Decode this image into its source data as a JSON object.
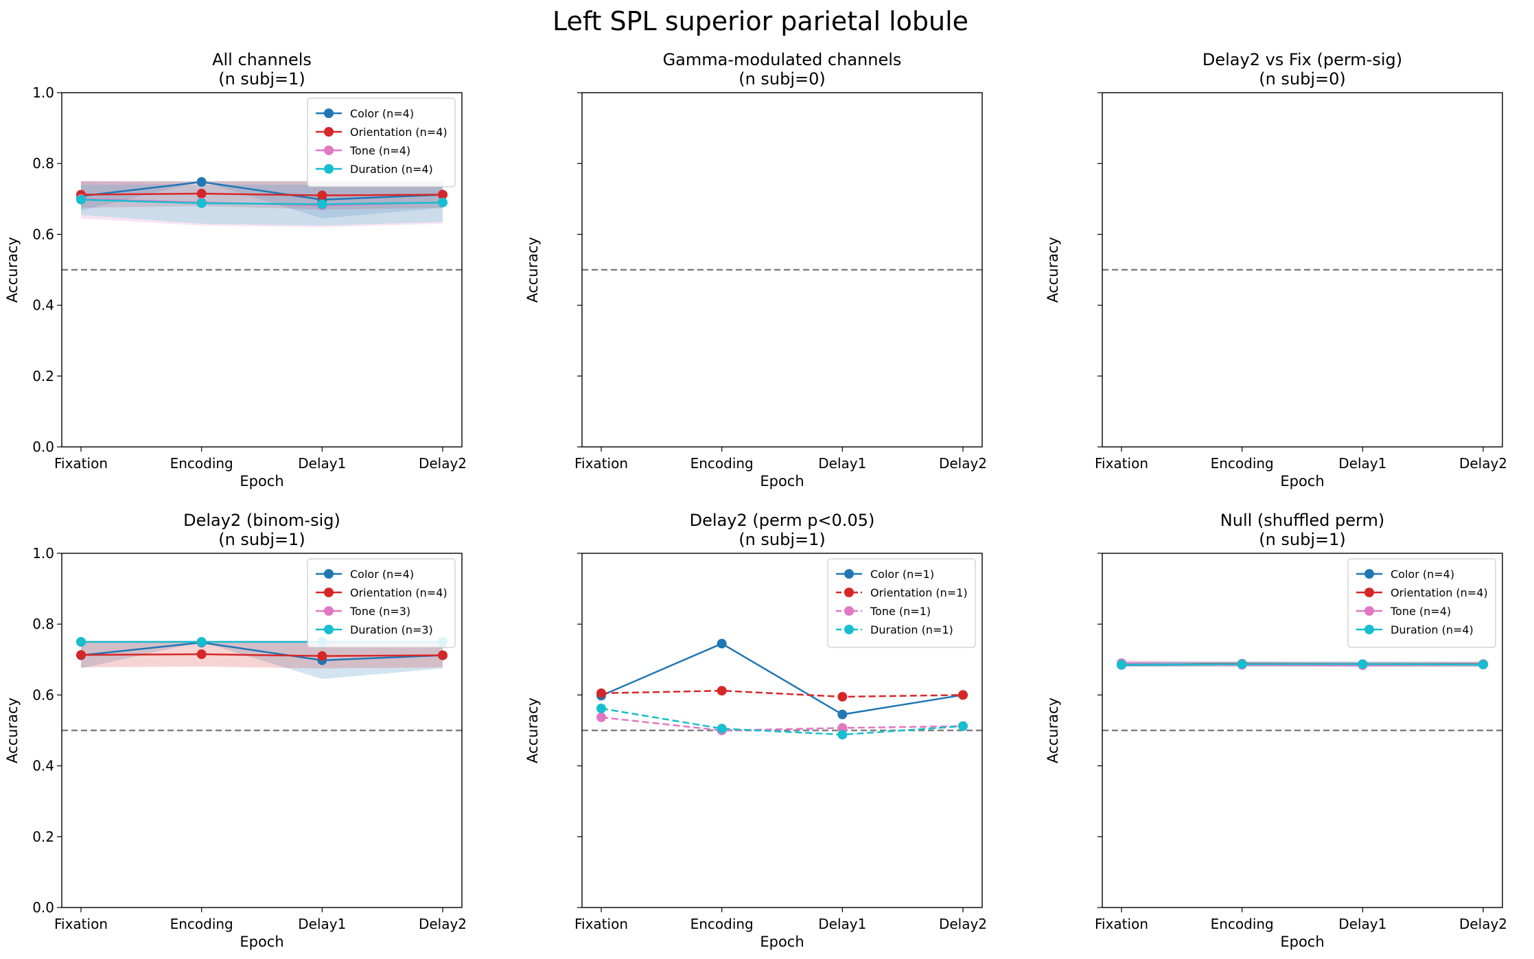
{
  "figure": {
    "suptitle": "Left SPL superior parietal lobule"
  },
  "colors": {
    "Color": "#1f77b4",
    "Orientation": "#d62728",
    "Tone": "#e377c2",
    "Duration": "#17becf",
    "chance_line": "#808080"
  },
  "chart_data": [
    {
      "type": "line",
      "title": "All channels",
      "subtitle": "(n subj=1)",
      "xlabel": "Epoch",
      "ylabel": "Accuracy",
      "categories": [
        "Fixation",
        "Encoding",
        "Delay1",
        "Delay2"
      ],
      "ylim": [
        0,
        1
      ],
      "yticks": [
        "0.0",
        "0.2",
        "0.4",
        "0.6",
        "0.8",
        "1.0"
      ],
      "show_ytick_labels": true,
      "chance_level": 0.5,
      "legend_position": "top-right",
      "series": [
        {
          "name": "Color (n=4)",
          "key": "Color",
          "dashed": false,
          "values": [
            0.708,
            0.748,
            0.698,
            0.712
          ],
          "band": [
            [
              0.667,
              0.75
            ],
            [
              0.75,
              0.75
            ],
            [
              0.645,
              0.75
            ],
            [
              0.675,
              0.75
            ]
          ]
        },
        {
          "name": "Orientation (n=4)",
          "key": "Orientation",
          "dashed": false,
          "values": [
            0.712,
            0.715,
            0.71,
            0.712
          ],
          "band": [
            [
              0.675,
              0.75
            ],
            [
              0.68,
              0.75
            ],
            [
              0.67,
              0.75
            ],
            [
              0.675,
              0.75
            ]
          ]
        },
        {
          "name": "Tone (n=4)",
          "key": "Tone",
          "dashed": false,
          "values": [
            0.7,
            0.69,
            0.682,
            0.69
          ],
          "band": [
            [
              0.645,
              0.75
            ],
            [
              0.625,
              0.74
            ],
            [
              0.62,
              0.74
            ],
            [
              0.63,
              0.74
            ]
          ]
        },
        {
          "name": "Duration (n=4)",
          "key": "Duration",
          "dashed": false,
          "values": [
            0.698,
            0.688,
            0.685,
            0.69
          ],
          "band": [
            [
              0.655,
              0.74
            ],
            [
              0.63,
              0.74
            ],
            [
              0.625,
              0.74
            ],
            [
              0.635,
              0.74
            ]
          ]
        }
      ]
    },
    {
      "type": "line",
      "title": "Gamma-modulated channels",
      "subtitle": "(n subj=0)",
      "xlabel": "Epoch",
      "ylabel": "Accuracy",
      "categories": [
        "Fixation",
        "Encoding",
        "Delay1",
        "Delay2"
      ],
      "ylim": [
        0,
        1
      ],
      "yticks": [
        "0.0",
        "0.2",
        "0.4",
        "0.6",
        "0.8",
        "1.0"
      ],
      "show_ytick_labels": false,
      "chance_level": 0.5,
      "series": []
    },
    {
      "type": "line",
      "title": "Delay2 vs Fix (perm-sig)",
      "subtitle": "(n subj=0)",
      "xlabel": "Epoch",
      "ylabel": "Accuracy",
      "categories": [
        "Fixation",
        "Encoding",
        "Delay1",
        "Delay2"
      ],
      "ylim": [
        0,
        1
      ],
      "yticks": [
        "0.0",
        "0.2",
        "0.4",
        "0.6",
        "0.8",
        "1.0"
      ],
      "show_ytick_labels": false,
      "chance_level": 0.5,
      "series": []
    },
    {
      "type": "line",
      "title": "Delay2 (binom-sig)",
      "subtitle": "(n subj=1)",
      "xlabel": "Epoch",
      "ylabel": "Accuracy",
      "categories": [
        "Fixation",
        "Encoding",
        "Delay1",
        "Delay2"
      ],
      "ylim": [
        0,
        1
      ],
      "yticks": [
        "0.0",
        "0.2",
        "0.4",
        "0.6",
        "0.8",
        "1.0"
      ],
      "show_ytick_labels": true,
      "chance_level": 0.5,
      "legend_position": "top-right",
      "series": [
        {
          "name": "Color (n=4)",
          "key": "Color",
          "dashed": false,
          "values": [
            0.712,
            0.748,
            0.698,
            0.712
          ],
          "band": [
            [
              0.675,
              0.75
            ],
            [
              0.75,
              0.75
            ],
            [
              0.645,
              0.75
            ],
            [
              0.675,
              0.75
            ]
          ]
        },
        {
          "name": "Orientation (n=4)",
          "key": "Orientation",
          "dashed": false,
          "values": [
            0.713,
            0.715,
            0.71,
            0.712
          ],
          "band": [
            [
              0.678,
              0.75
            ],
            [
              0.68,
              0.75
            ],
            [
              0.675,
              0.75
            ],
            [
              0.678,
              0.75
            ]
          ]
        },
        {
          "name": "Tone (n=3)",
          "key": "Tone",
          "dashed": false,
          "values": [
            0.75,
            0.75,
            0.75,
            0.75
          ],
          "band": null
        },
        {
          "name": "Duration (n=3)",
          "key": "Duration",
          "dashed": false,
          "values": [
            0.75,
            0.75,
            0.75,
            0.75
          ],
          "band": null
        }
      ]
    },
    {
      "type": "line",
      "title": "Delay2 (perm p<0.05)",
      "subtitle": "(n subj=1)",
      "xlabel": "Epoch",
      "ylabel": "Accuracy",
      "categories": [
        "Fixation",
        "Encoding",
        "Delay1",
        "Delay2"
      ],
      "ylim": [
        0,
        1
      ],
      "yticks": [
        "0.0",
        "0.2",
        "0.4",
        "0.6",
        "0.8",
        "1.0"
      ],
      "show_ytick_labels": false,
      "chance_level": 0.5,
      "legend_position": "top-right",
      "series": [
        {
          "name": "Color (n=1)",
          "key": "Color",
          "dashed": false,
          "values": [
            0.598,
            0.745,
            0.545,
            0.6
          ],
          "band": null
        },
        {
          "name": "Orientation (n=1)",
          "key": "Orientation",
          "dashed": true,
          "values": [
            0.605,
            0.612,
            0.595,
            0.6
          ],
          "band": null
        },
        {
          "name": "Tone (n=1)",
          "key": "Tone",
          "dashed": true,
          "values": [
            0.537,
            0.5,
            0.507,
            0.512
          ],
          "band": null
        },
        {
          "name": "Duration (n=1)",
          "key": "Duration",
          "dashed": true,
          "values": [
            0.562,
            0.505,
            0.488,
            0.512
          ],
          "band": null
        }
      ]
    },
    {
      "type": "line",
      "title": "Null (shuffled perm)",
      "subtitle": "(n subj=1)",
      "xlabel": "Epoch",
      "ylabel": "Accuracy",
      "categories": [
        "Fixation",
        "Encoding",
        "Delay1",
        "Delay2"
      ],
      "ylim": [
        0,
        1
      ],
      "yticks": [
        "0.0",
        "0.2",
        "0.4",
        "0.6",
        "0.8",
        "1.0"
      ],
      "show_ytick_labels": false,
      "chance_level": 0.5,
      "legend_position": "top-right",
      "series": [
        {
          "name": "Color (n=4)",
          "key": "Color",
          "dashed": false,
          "values": [
            0.685,
            0.687,
            0.686,
            0.686
          ],
          "band": [
            [
              0.68,
              0.693
            ],
            [
              0.681,
              0.694
            ],
            [
              0.68,
              0.693
            ],
            [
              0.68,
              0.693
            ]
          ]
        },
        {
          "name": "Orientation (n=4)",
          "key": "Orientation",
          "dashed": false,
          "values": [
            0.687,
            0.688,
            0.687,
            0.687
          ],
          "band": [
            [
              0.681,
              0.694
            ],
            [
              0.682,
              0.694
            ],
            [
              0.681,
              0.694
            ],
            [
              0.681,
              0.694
            ]
          ]
        },
        {
          "name": "Tone (n=4)",
          "key": "Tone",
          "dashed": false,
          "values": [
            0.69,
            0.685,
            0.684,
            0.686
          ],
          "band": [
            [
              0.68,
              0.699
            ],
            [
              0.679,
              0.693
            ],
            [
              0.678,
              0.692
            ],
            [
              0.679,
              0.694
            ]
          ]
        },
        {
          "name": "Duration (n=4)",
          "key": "Duration",
          "dashed": false,
          "values": [
            0.686,
            0.687,
            0.687,
            0.686
          ],
          "band": [
            [
              0.68,
              0.693
            ],
            [
              0.681,
              0.694
            ],
            [
              0.681,
              0.694
            ],
            [
              0.68,
              0.693
            ]
          ]
        }
      ]
    }
  ]
}
